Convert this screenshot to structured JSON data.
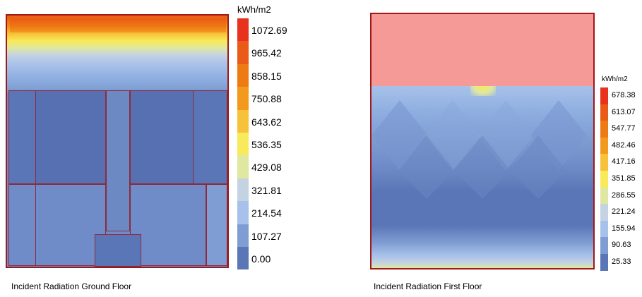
{
  "left_figure": {
    "caption": "Incident Radiation Ground Floor",
    "legend": {
      "unit": "kWh/m2",
      "ticks": [
        "1072.69",
        "965.42",
        "858.15",
        "750.88",
        "643.62",
        "536.35",
        "429.08",
        "321.81",
        "214.54",
        "107.27",
        "0.00"
      ],
      "colors": [
        "#e8321e",
        "#ea5a18",
        "#ee7a14",
        "#f29a1e",
        "#f7c23a",
        "#f8ea5a",
        "#dfe7a0",
        "#c4d3e2",
        "#a7c1ea",
        "#7f9dd2",
        "#5a76b6"
      ]
    }
  },
  "right_figure": {
    "caption": "Incident Radiation First Floor",
    "legend": {
      "unit": "kWh/m2",
      "ticks": [
        "678.38",
        "613.07",
        "547.77",
        "482.46",
        "417.16",
        "351.85",
        "286.55",
        "221.24",
        "155.94",
        "90.63",
        "25.33"
      ],
      "colors": [
        "#e8321e",
        "#ea5a18",
        "#ee7a14",
        "#f29a1e",
        "#f7c23a",
        "#f8ea5a",
        "#dfe7a0",
        "#c4d3e2",
        "#a7c1ea",
        "#7f9dd2",
        "#5a76b6"
      ]
    }
  }
}
